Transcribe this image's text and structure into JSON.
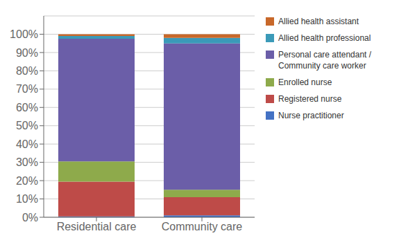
{
  "chart_data": {
    "type": "bar",
    "categories": [
      "Residential care",
      "Community care"
    ],
    "series": [
      {
        "name": "Nurse practitioner",
        "color": "#4472C4",
        "values": [
          0.5,
          1.0
        ]
      },
      {
        "name": "Registered nurse",
        "color": "#BE4B48",
        "values": [
          19.0,
          10.0
        ]
      },
      {
        "name": "Enrolled nurse",
        "color": "#8EAA4B",
        "values": [
          11.0,
          4.0
        ]
      },
      {
        "name": "Personal care attendant /\nCommunity care worker",
        "color": "#6B5EA8",
        "values": [
          67.0,
          80.0
        ]
      },
      {
        "name": "Allied health professional",
        "color": "#3B9AB8",
        "values": [
          1.5,
          3.0
        ]
      },
      {
        "name": "Allied health assistant",
        "color": "#C8682A",
        "values": [
          1.0,
          2.0
        ]
      }
    ],
    "ylim": [
      0,
      110
    ],
    "yticks": [
      {
        "value": 0,
        "label": "0%"
      },
      {
        "value": 10,
        "label": "10%"
      },
      {
        "value": 20,
        "label": "20%"
      },
      {
        "value": 30,
        "label": "30%"
      },
      {
        "value": 40,
        "label": "40%"
      },
      {
        "value": 50,
        "label": "50%"
      },
      {
        "value": 60,
        "label": "60%"
      },
      {
        "value": 70,
        "label": "70%"
      },
      {
        "value": 80,
        "label": "80%"
      },
      {
        "value": 90,
        "label": "90%"
      },
      {
        "value": 100,
        "label": "100%"
      }
    ],
    "grid": true,
    "stacked": true,
    "legend": "right"
  }
}
